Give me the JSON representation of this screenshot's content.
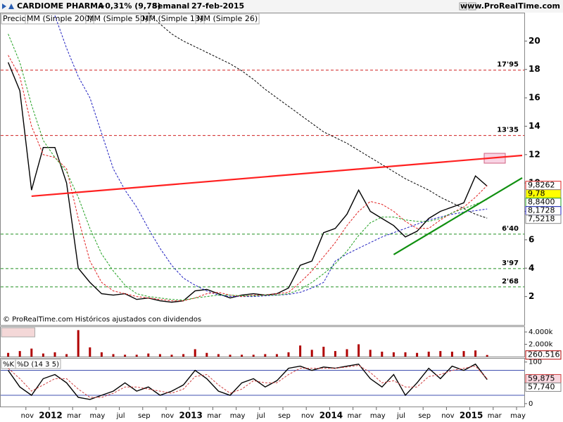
{
  "header": {
    "symbol": "CARDIOME PHARMA",
    "change": "+0,31% (9,78)",
    "period": "Semanal",
    "date": "27-feb-2015",
    "site": "www.ProRealTime.com"
  },
  "footer": "© ProRealTime.com Históricos ajustados con dividendos",
  "chart_data": [
    {
      "type": "line",
      "x": [
        "2011-09",
        "2011-10",
        "2011-11",
        "2011-12",
        "2012-01",
        "2012-02",
        "2012-03",
        "2012-04",
        "2012-05",
        "2012-06",
        "2012-07",
        "2012-08",
        "2012-09",
        "2012-10",
        "2012-11",
        "2012-12",
        "2013-01",
        "2013-02",
        "2013-03",
        "2013-04",
        "2013-05",
        "2013-06",
        "2013-07",
        "2013-08",
        "2013-09",
        "2013-10",
        "2013-11",
        "2013-12",
        "2014-01",
        "2014-02",
        "2014-03",
        "2014-04",
        "2014-05",
        "2014-06",
        "2014-07",
        "2014-08",
        "2014-09",
        "2014-10",
        "2014-11",
        "2014-12",
        "2015-01",
        "2015-02"
      ],
      "series": [
        {
          "name": "Precio",
          "color": "#000000",
          "dashed": false,
          "last_label": "9,78",
          "values": [
            18.5,
            16.5,
            9.5,
            12.5,
            12.5,
            10,
            4,
            3,
            2.2,
            2.1,
            2.2,
            1.8,
            1.9,
            1.7,
            1.6,
            1.7,
            2.4,
            2.5,
            2.2,
            1.9,
            2.1,
            2.2,
            2.1,
            2.2,
            2.6,
            4.2,
            4.5,
            6.5,
            6.8,
            7.8,
            9.5,
            8.0,
            7.5,
            7.0,
            6.2,
            6.6,
            7.5,
            8.0,
            8.3,
            8.6,
            10.5,
            9.78
          ]
        },
        {
          "name": "MM (Simple 200)",
          "color": "#000000",
          "dashed": true,
          "last_label": "7,5218",
          "values": [
            null,
            null,
            null,
            null,
            null,
            null,
            null,
            null,
            null,
            null,
            null,
            null,
            22,
            21.2,
            20.5,
            20,
            19.6,
            19.2,
            18.8,
            18.4,
            17.9,
            17.3,
            16.6,
            16.0,
            15.4,
            14.8,
            14.2,
            13.6,
            13.2,
            12.8,
            12.3,
            11.8,
            11.3,
            10.8,
            10.3,
            9.9,
            9.5,
            9.0,
            8.6,
            8.2,
            7.8,
            7.5218
          ]
        },
        {
          "name": "MM (Simple 50)",
          "color": "#2020c0",
          "dashed": true,
          "last_label": "8,1728",
          "values": [
            null,
            null,
            null,
            null,
            21.8,
            19.5,
            17.5,
            16,
            13.5,
            11,
            9.5,
            8.3,
            6.8,
            5.4,
            4.2,
            3.3,
            2.8,
            2.4,
            2.1,
            2.0,
            2.0,
            2.0,
            2.05,
            2.1,
            2.15,
            2.3,
            2.6,
            3.0,
            4.5,
            5.0,
            5.4,
            5.8,
            6.2,
            6.5,
            6.8,
            7.1,
            7.4,
            7.6,
            7.8,
            7.95,
            8.05,
            8.1728
          ]
        },
        {
          "name": "MM (Simple 13)",
          "color": "#e02020",
          "dashed": true,
          "last_label": "9,8262",
          "values": [
            19,
            17.5,
            14,
            12,
            11.8,
            11,
            7.5,
            4.5,
            3.0,
            2.4,
            2.2,
            2.0,
            1.9,
            1.8,
            1.7,
            1.7,
            1.9,
            2.2,
            2.3,
            2.1,
            2.0,
            2.1,
            2.1,
            2.2,
            2.3,
            3.0,
            3.8,
            4.8,
            5.8,
            7.0,
            8.0,
            8.7,
            8.5,
            8.0,
            7.3,
            6.8,
            6.8,
            7.4,
            7.9,
            8.3,
            9.0,
            9.8262
          ]
        },
        {
          "name": "MM (Simple 26)",
          "color": "#20a020",
          "dashed": true,
          "last_label": "8,8400",
          "values": [
            20.5,
            18.5,
            15.5,
            13,
            11.8,
            10.8,
            9,
            6.8,
            5,
            3.8,
            2.8,
            2.2,
            2.0,
            1.9,
            1.8,
            1.75,
            1.9,
            2.0,
            2.1,
            2.1,
            2.05,
            2.05,
            2.1,
            2.1,
            2.2,
            2.5,
            3.0,
            3.6,
            4.3,
            5.2,
            6.3,
            7.2,
            7.6,
            7.6,
            7.4,
            7.3,
            7.3,
            7.5,
            7.9,
            8.2,
            8.5,
            8.84
          ]
        }
      ],
      "ylim": [
        0,
        22
      ],
      "yticks": [
        2,
        4,
        6,
        8,
        10,
        12,
        14,
        16,
        18,
        20
      ],
      "levels": [
        {
          "value": 17.95,
          "label": "17'95",
          "color": "#d02020"
        },
        {
          "value": 13.35,
          "label": "13'35",
          "color": "#d02020"
        },
        {
          "value": 6.4,
          "label": "6'40",
          "color": "#209020"
        },
        {
          "value": 3.97,
          "label": "3'97",
          "color": "#209020"
        },
        {
          "value": 2.68,
          "label": "2'68",
          "color": "#209020"
        }
      ],
      "trendlines": [
        {
          "color": "#ff2020",
          "x": [
            "2011-11",
            "2015-05"
          ],
          "values": [
            9.07,
            11.94
          ]
        },
        {
          "color": "#109010",
          "x": [
            "2014-06",
            "2015-05"
          ],
          "values": [
            4.96,
            10.36
          ]
        }
      ]
    },
    {
      "type": "bar",
      "x": [
        "2011-09",
        "2011-10",
        "2011-11",
        "2011-12",
        "2012-01",
        "2012-02",
        "2012-03",
        "2012-04",
        "2012-05",
        "2012-06",
        "2012-07",
        "2012-08",
        "2012-09",
        "2012-10",
        "2012-11",
        "2012-12",
        "2013-01",
        "2013-02",
        "2013-03",
        "2013-04",
        "2013-05",
        "2013-06",
        "2013-07",
        "2013-08",
        "2013-09",
        "2013-10",
        "2013-11",
        "2013-12",
        "2014-01",
        "2014-02",
        "2014-03",
        "2014-04",
        "2014-05",
        "2014-06",
        "2014-07",
        "2014-08",
        "2014-09",
        "2014-10",
        "2014-11",
        "2014-12",
        "2015-01",
        "2015-02"
      ],
      "series": [
        {
          "name": "Volumen",
          "color": "#b00000",
          "last_label": "260.516",
          "values": [
            600000,
            900000,
            1300000,
            500000,
            700000,
            400000,
            4300000,
            1500000,
            700000,
            400000,
            300000,
            300000,
            500000,
            400000,
            300000,
            400000,
            1200000,
            600000,
            400000,
            300000,
            300000,
            300000,
            400000,
            400000,
            700000,
            1800000,
            1100000,
            1600000,
            900000,
            1200000,
            2000000,
            1100000,
            800000,
            700000,
            700000,
            600000,
            800000,
            900000,
            800000,
            900000,
            1000000,
            260516
          ]
        }
      ],
      "ylim": [
        0,
        4800000
      ],
      "yticks": [
        {
          "value": 2000000,
          "label": "2.000k"
        },
        {
          "value": 4000000,
          "label": "4.000k"
        }
      ]
    },
    {
      "type": "line",
      "x": [
        "2011-09",
        "2011-10",
        "2011-11",
        "2011-12",
        "2012-01",
        "2012-02",
        "2012-03",
        "2012-04",
        "2012-05",
        "2012-06",
        "2012-07",
        "2012-08",
        "2012-09",
        "2012-10",
        "2012-11",
        "2012-12",
        "2013-01",
        "2013-02",
        "2013-03",
        "2013-04",
        "2013-05",
        "2013-06",
        "2013-07",
        "2013-08",
        "2013-09",
        "2013-10",
        "2013-11",
        "2013-12",
        "2014-01",
        "2014-02",
        "2014-03",
        "2014-04",
        "2014-05",
        "2014-06",
        "2014-07",
        "2014-08",
        "2014-09",
        "2014-10",
        "2014-11",
        "2014-12",
        "2015-01",
        "2015-02"
      ],
      "series": [
        {
          "name": "%K",
          "color": "#000000",
          "dashed": false,
          "last_label": "57,740",
          "values": [
            80,
            40,
            20,
            60,
            70,
            50,
            15,
            10,
            20,
            30,
            50,
            30,
            40,
            20,
            30,
            45,
            80,
            60,
            30,
            20,
            50,
            60,
            40,
            55,
            85,
            90,
            80,
            88,
            85,
            90,
            95,
            60,
            40,
            70,
            20,
            50,
            85,
            60,
            90,
            80,
            95,
            57.74
          ]
        },
        {
          "name": "%D (14 3 5)",
          "color": "#d04040",
          "dashed": true,
          "last_label": "59,875",
          "values": [
            85,
            60,
            30,
            45,
            60,
            60,
            35,
            15,
            15,
            25,
            40,
            40,
            35,
            30,
            25,
            35,
            65,
            70,
            45,
            25,
            35,
            55,
            50,
            50,
            70,
            85,
            85,
            85,
            85,
            88,
            92,
            75,
            50,
            55,
            40,
            40,
            65,
            70,
            80,
            85,
            90,
            59.875
          ]
        }
      ],
      "ylim": [
        -7,
        108
      ],
      "yticks": [
        0,
        50,
        100
      ],
      "bands": [
        20,
        80
      ],
      "xticks": [
        {
          "value": "2011-11",
          "label": "nov"
        },
        {
          "value": "2012-01",
          "label": "2012"
        },
        {
          "value": "2012-03",
          "label": "mar"
        },
        {
          "value": "2012-05",
          "label": "may"
        },
        {
          "value": "2012-07",
          "label": "jul"
        },
        {
          "value": "2012-09",
          "label": "sep"
        },
        {
          "value": "2012-11",
          "label": "nov"
        },
        {
          "value": "2013-01",
          "label": "2013"
        },
        {
          "value": "2013-03",
          "label": "mar"
        },
        {
          "value": "2013-05",
          "label": "may"
        },
        {
          "value": "2013-07",
          "label": "jul"
        },
        {
          "value": "2013-09",
          "label": "sep"
        },
        {
          "value": "2013-11",
          "label": "nov"
        },
        {
          "value": "2014-01",
          "label": "2014"
        },
        {
          "value": "2014-03",
          "label": "mar"
        },
        {
          "value": "2014-05",
          "label": "may"
        },
        {
          "value": "2014-07",
          "label": "jul"
        },
        {
          "value": "2014-09",
          "label": "sep"
        },
        {
          "value": "2014-11",
          "label": "nov"
        },
        {
          "value": "2015-01",
          "label": "2015"
        },
        {
          "value": "2015-03",
          "label": "mar"
        },
        {
          "value": "2015-05",
          "label": "may"
        }
      ]
    }
  ]
}
